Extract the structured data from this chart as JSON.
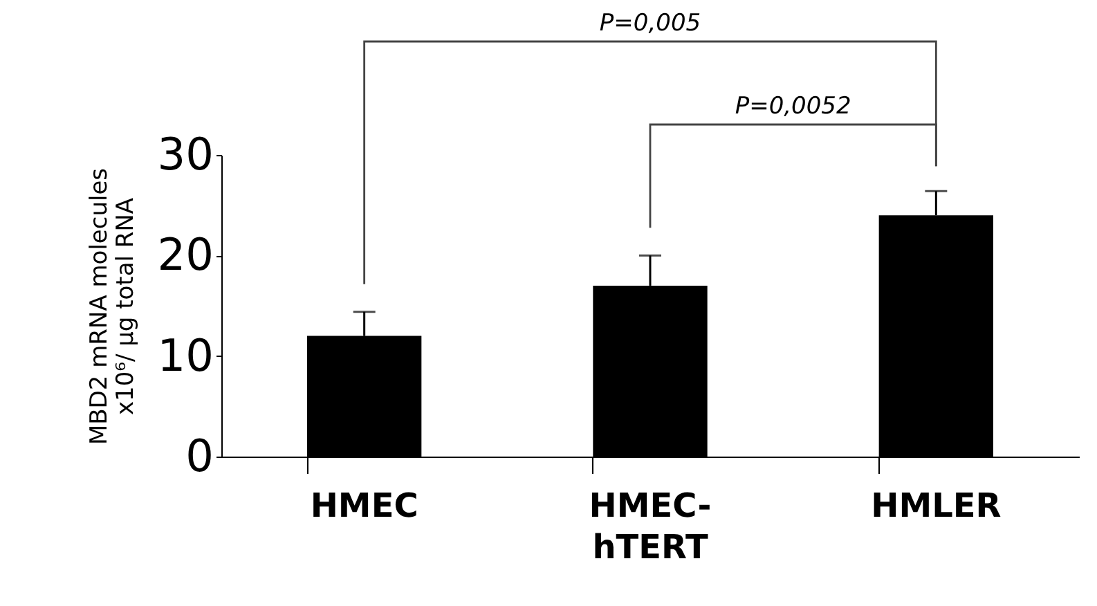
{
  "chart_data": {
    "type": "bar",
    "ylabel": "MBD2 mRNA molecules x10⁶/ µg total RNA",
    "categories": [
      "HMEC",
      "HMEC-hTERT",
      "HMLER"
    ],
    "values": [
      12,
      17,
      24
    ],
    "errors": [
      2.4,
      3,
      2.4
    ],
    "color": "#000000",
    "ylim": [
      0,
      30
    ],
    "yticks": [
      0,
      10,
      20,
      30
    ],
    "annotations": [
      "P=0,005",
      "P=0,0052"
    ]
  }
}
